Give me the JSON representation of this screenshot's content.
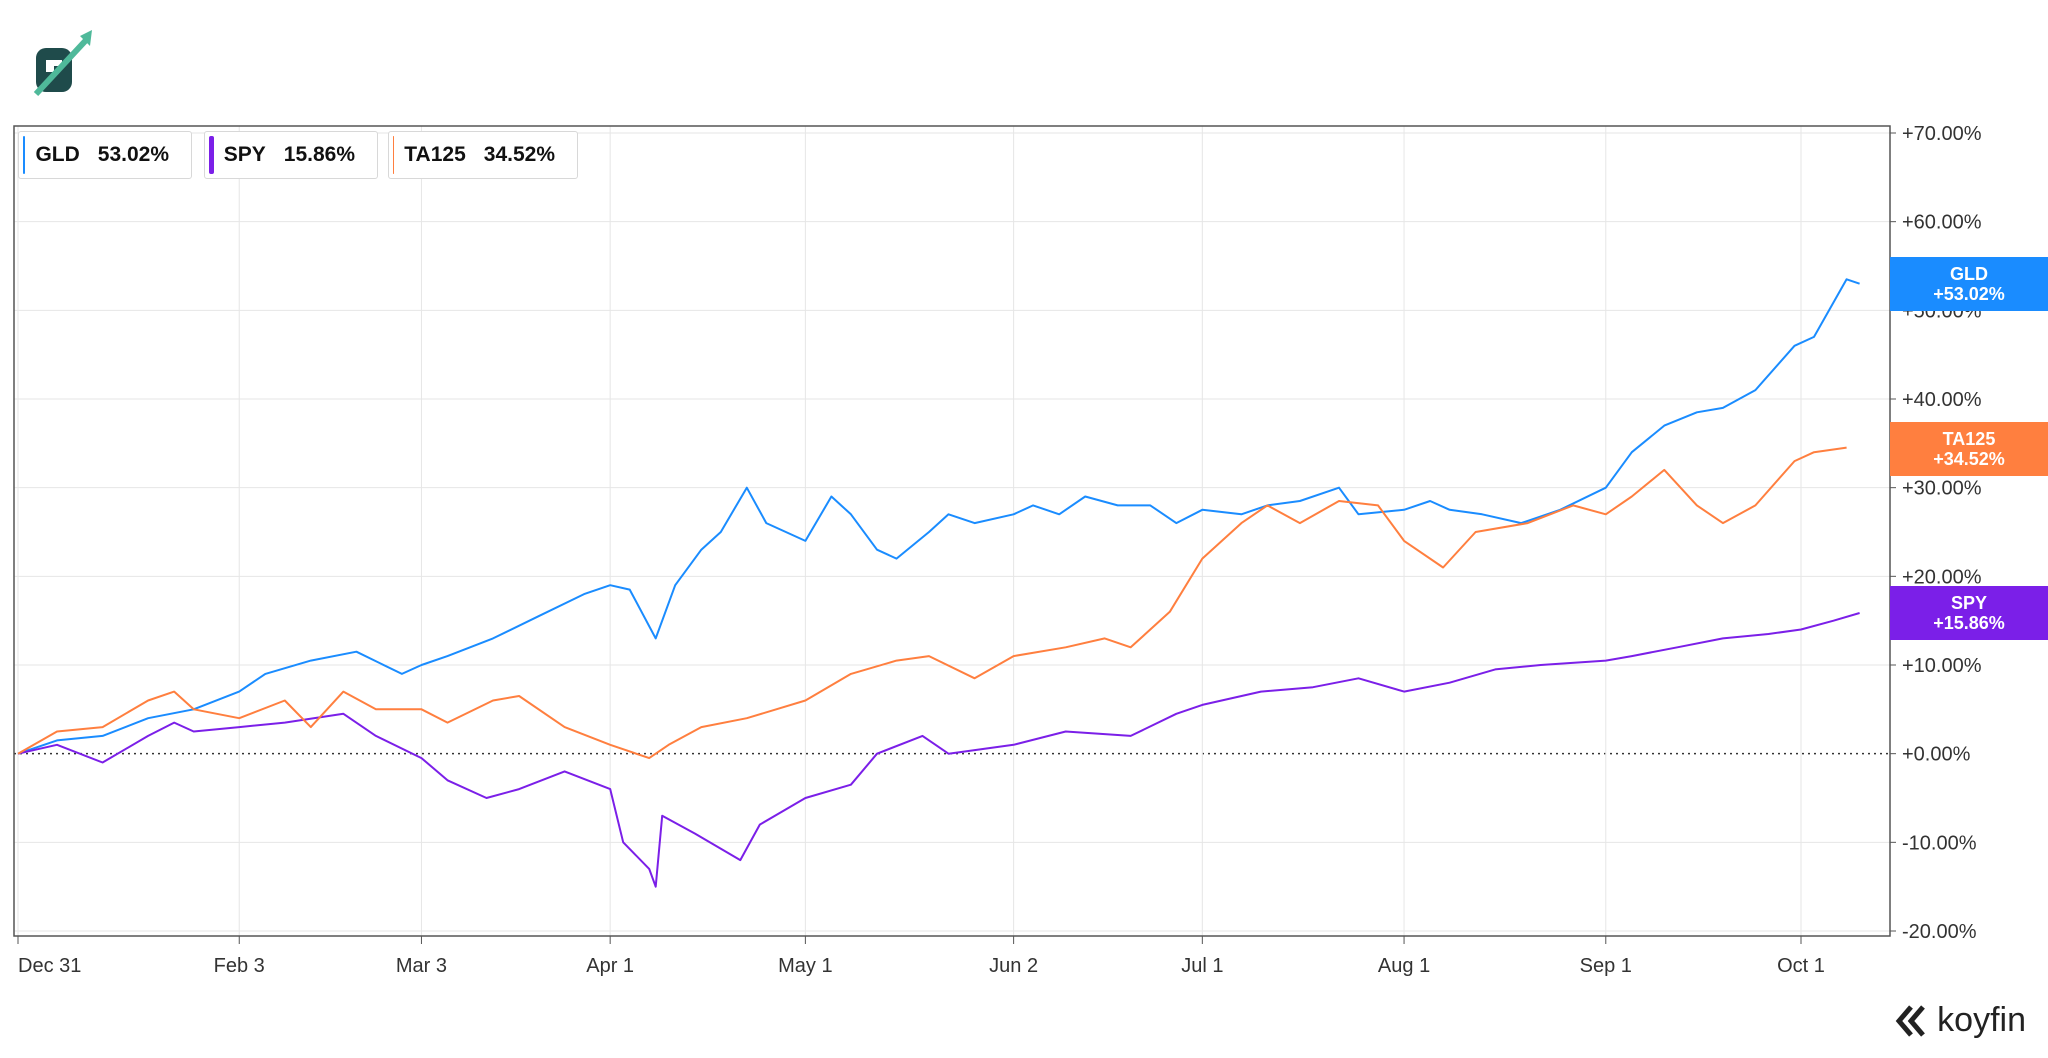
{
  "legend": [
    {
      "symbol": "GLD",
      "value": "53.02%",
      "color": "#1a8cff"
    },
    {
      "symbol": "SPY",
      "value": "15.86%",
      "color": "#7b1fe8"
    },
    {
      "symbol": "TA125",
      "value": "34.52%",
      "color": "#ff7f3f"
    }
  ],
  "tags": [
    {
      "symbol": "GLD",
      "value": "+53.02%",
      "color": "#1a8cff"
    },
    {
      "symbol": "TA125",
      "value": "+34.52%",
      "color": "#ff7f3f"
    },
    {
      "symbol": "SPY",
      "value": "+15.86%",
      "color": "#7b1fe8"
    }
  ],
  "brand": {
    "name": "koyfin"
  },
  "chart_data": {
    "type": "line",
    "ylim": [
      -20,
      70
    ],
    "y_ticks": [
      "+70.00%",
      "+60.00%",
      "+50.00%",
      "+40.00%",
      "+30.00%",
      "+20.00%",
      "+10.00%",
      "+0.00%",
      "-10.00%",
      "-20.00%"
    ],
    "y_tick_values": [
      70,
      60,
      50,
      40,
      30,
      20,
      10,
      0,
      -10,
      -20
    ],
    "x_ticks": [
      "Dec 31",
      "Feb 3",
      "Mar 3",
      "Apr 1",
      "May 1",
      "Jun 2",
      "Jul 1",
      "Aug 1",
      "Sep 1",
      "Oct 1"
    ],
    "x_tick_dates": [
      "2024-12-31",
      "2025-02-03",
      "2025-03-03",
      "2025-04-01",
      "2025-05-01",
      "2025-06-02",
      "2025-07-01",
      "2025-08-01",
      "2025-09-01",
      "2025-10-01"
    ],
    "grid": true,
    "zero_line": "dotted",
    "series": [
      {
        "name": "GLD",
        "color": "#1a8cff",
        "points": [
          [
            "2024-12-31",
            0
          ],
          [
            "2025-01-06",
            1.5
          ],
          [
            "2025-01-13",
            2
          ],
          [
            "2025-01-20",
            4
          ],
          [
            "2025-01-27",
            5
          ],
          [
            "2025-02-03",
            7
          ],
          [
            "2025-02-07",
            9
          ],
          [
            "2025-02-14",
            10.5
          ],
          [
            "2025-02-21",
            11.5
          ],
          [
            "2025-02-28",
            9
          ],
          [
            "2025-03-03",
            10
          ],
          [
            "2025-03-07",
            11
          ],
          [
            "2025-03-14",
            13
          ],
          [
            "2025-03-21",
            15.5
          ],
          [
            "2025-03-28",
            18
          ],
          [
            "2025-04-01",
            19
          ],
          [
            "2025-04-04",
            18.5
          ],
          [
            "2025-04-08",
            13
          ],
          [
            "2025-04-11",
            19
          ],
          [
            "2025-04-15",
            23
          ],
          [
            "2025-04-18",
            25
          ],
          [
            "2025-04-22",
            30
          ],
          [
            "2025-04-25",
            26
          ],
          [
            "2025-05-01",
            24
          ],
          [
            "2025-05-05",
            29
          ],
          [
            "2025-05-08",
            27
          ],
          [
            "2025-05-12",
            23
          ],
          [
            "2025-05-15",
            22
          ],
          [
            "2025-05-20",
            25
          ],
          [
            "2025-05-23",
            27
          ],
          [
            "2025-05-27",
            26
          ],
          [
            "2025-06-02",
            27
          ],
          [
            "2025-06-05",
            28
          ],
          [
            "2025-06-09",
            27
          ],
          [
            "2025-06-13",
            29
          ],
          [
            "2025-06-18",
            28
          ],
          [
            "2025-06-23",
            28
          ],
          [
            "2025-06-27",
            26
          ],
          [
            "2025-07-01",
            27.5
          ],
          [
            "2025-07-07",
            27
          ],
          [
            "2025-07-11",
            28
          ],
          [
            "2025-07-16",
            28.5
          ],
          [
            "2025-07-22",
            30
          ],
          [
            "2025-07-25",
            27
          ],
          [
            "2025-08-01",
            27.5
          ],
          [
            "2025-08-05",
            28.5
          ],
          [
            "2025-08-08",
            27.5
          ],
          [
            "2025-08-13",
            27
          ],
          [
            "2025-08-19",
            26
          ],
          [
            "2025-08-25",
            27.5
          ],
          [
            "2025-09-01",
            30
          ],
          [
            "2025-09-05",
            34
          ],
          [
            "2025-09-10",
            37
          ],
          [
            "2025-09-15",
            38.5
          ],
          [
            "2025-09-19",
            39
          ],
          [
            "2025-09-24",
            41
          ],
          [
            "2025-09-30",
            46
          ],
          [
            "2025-10-03",
            47
          ],
          [
            "2025-10-08",
            53.5
          ],
          [
            "2025-10-10",
            53
          ]
        ]
      },
      {
        "name": "SPY",
        "color": "#7b1fe8",
        "points": [
          [
            "2024-12-31",
            0
          ],
          [
            "2025-01-06",
            1
          ],
          [
            "2025-01-13",
            -1
          ],
          [
            "2025-01-20",
            2
          ],
          [
            "2025-01-24",
            3.5
          ],
          [
            "2025-01-27",
            2.5
          ],
          [
            "2025-02-03",
            3
          ],
          [
            "2025-02-10",
            3.5
          ],
          [
            "2025-02-19",
            4.5
          ],
          [
            "2025-02-24",
            2
          ],
          [
            "2025-03-03",
            -0.5
          ],
          [
            "2025-03-07",
            -3
          ],
          [
            "2025-03-13",
            -5
          ],
          [
            "2025-03-18",
            -4
          ],
          [
            "2025-03-25",
            -2
          ],
          [
            "2025-04-01",
            -4
          ],
          [
            "2025-04-03",
            -10
          ],
          [
            "2025-04-07",
            -13
          ],
          [
            "2025-04-08",
            -15
          ],
          [
            "2025-04-09",
            -7
          ],
          [
            "2025-04-14",
            -9
          ],
          [
            "2025-04-21",
            -12
          ],
          [
            "2025-04-24",
            -8
          ],
          [
            "2025-05-01",
            -5
          ],
          [
            "2025-05-08",
            -3.5
          ],
          [
            "2025-05-12",
            0
          ],
          [
            "2025-05-19",
            2
          ],
          [
            "2025-05-23",
            0
          ],
          [
            "2025-06-02",
            1
          ],
          [
            "2025-06-10",
            2.5
          ],
          [
            "2025-06-20",
            2
          ],
          [
            "2025-06-27",
            4.5
          ],
          [
            "2025-07-01",
            5.5
          ],
          [
            "2025-07-10",
            7
          ],
          [
            "2025-07-18",
            7.5
          ],
          [
            "2025-07-25",
            8.5
          ],
          [
            "2025-08-01",
            7
          ],
          [
            "2025-08-08",
            8
          ],
          [
            "2025-08-15",
            9.5
          ],
          [
            "2025-08-22",
            10
          ],
          [
            "2025-09-01",
            10.5
          ],
          [
            "2025-09-05",
            11
          ],
          [
            "2025-09-12",
            12
          ],
          [
            "2025-09-19",
            13
          ],
          [
            "2025-09-26",
            13.5
          ],
          [
            "2025-10-01",
            14
          ],
          [
            "2025-10-06",
            15
          ],
          [
            "2025-10-10",
            15.86
          ]
        ]
      },
      {
        "name": "TA125",
        "color": "#ff7f3f",
        "points": [
          [
            "2024-12-31",
            0
          ],
          [
            "2025-01-06",
            2.5
          ],
          [
            "2025-01-13",
            3
          ],
          [
            "2025-01-20",
            6
          ],
          [
            "2025-01-24",
            7
          ],
          [
            "2025-01-27",
            5
          ],
          [
            "2025-02-03",
            4
          ],
          [
            "2025-02-10",
            6
          ],
          [
            "2025-02-14",
            3
          ],
          [
            "2025-02-19",
            7
          ],
          [
            "2025-02-24",
            5
          ],
          [
            "2025-03-03",
            5
          ],
          [
            "2025-03-07",
            3.5
          ],
          [
            "2025-03-14",
            6
          ],
          [
            "2025-03-18",
            6.5
          ],
          [
            "2025-03-25",
            3
          ],
          [
            "2025-04-01",
            1
          ],
          [
            "2025-04-07",
            -0.5
          ],
          [
            "2025-04-10",
            1
          ],
          [
            "2025-04-15",
            3
          ],
          [
            "2025-04-22",
            4
          ],
          [
            "2025-05-01",
            6
          ],
          [
            "2025-05-08",
            9
          ],
          [
            "2025-05-15",
            10.5
          ],
          [
            "2025-05-20",
            11
          ],
          [
            "2025-05-27",
            8.5
          ],
          [
            "2025-06-02",
            11
          ],
          [
            "2025-06-10",
            12
          ],
          [
            "2025-06-16",
            13
          ],
          [
            "2025-06-20",
            12
          ],
          [
            "2025-06-26",
            16
          ],
          [
            "2025-07-01",
            22
          ],
          [
            "2025-07-07",
            26
          ],
          [
            "2025-07-11",
            28
          ],
          [
            "2025-07-16",
            26
          ],
          [
            "2025-07-22",
            28.5
          ],
          [
            "2025-07-28",
            28
          ],
          [
            "2025-08-01",
            24
          ],
          [
            "2025-08-07",
            21
          ],
          [
            "2025-08-12",
            25
          ],
          [
            "2025-08-20",
            26
          ],
          [
            "2025-08-27",
            28
          ],
          [
            "2025-09-01",
            27
          ],
          [
            "2025-09-05",
            29
          ],
          [
            "2025-09-10",
            32
          ],
          [
            "2025-09-15",
            28
          ],
          [
            "2025-09-19",
            26
          ],
          [
            "2025-09-24",
            28
          ],
          [
            "2025-09-30",
            33
          ],
          [
            "2025-10-03",
            34
          ],
          [
            "2025-10-08",
            34.52
          ]
        ]
      }
    ]
  }
}
